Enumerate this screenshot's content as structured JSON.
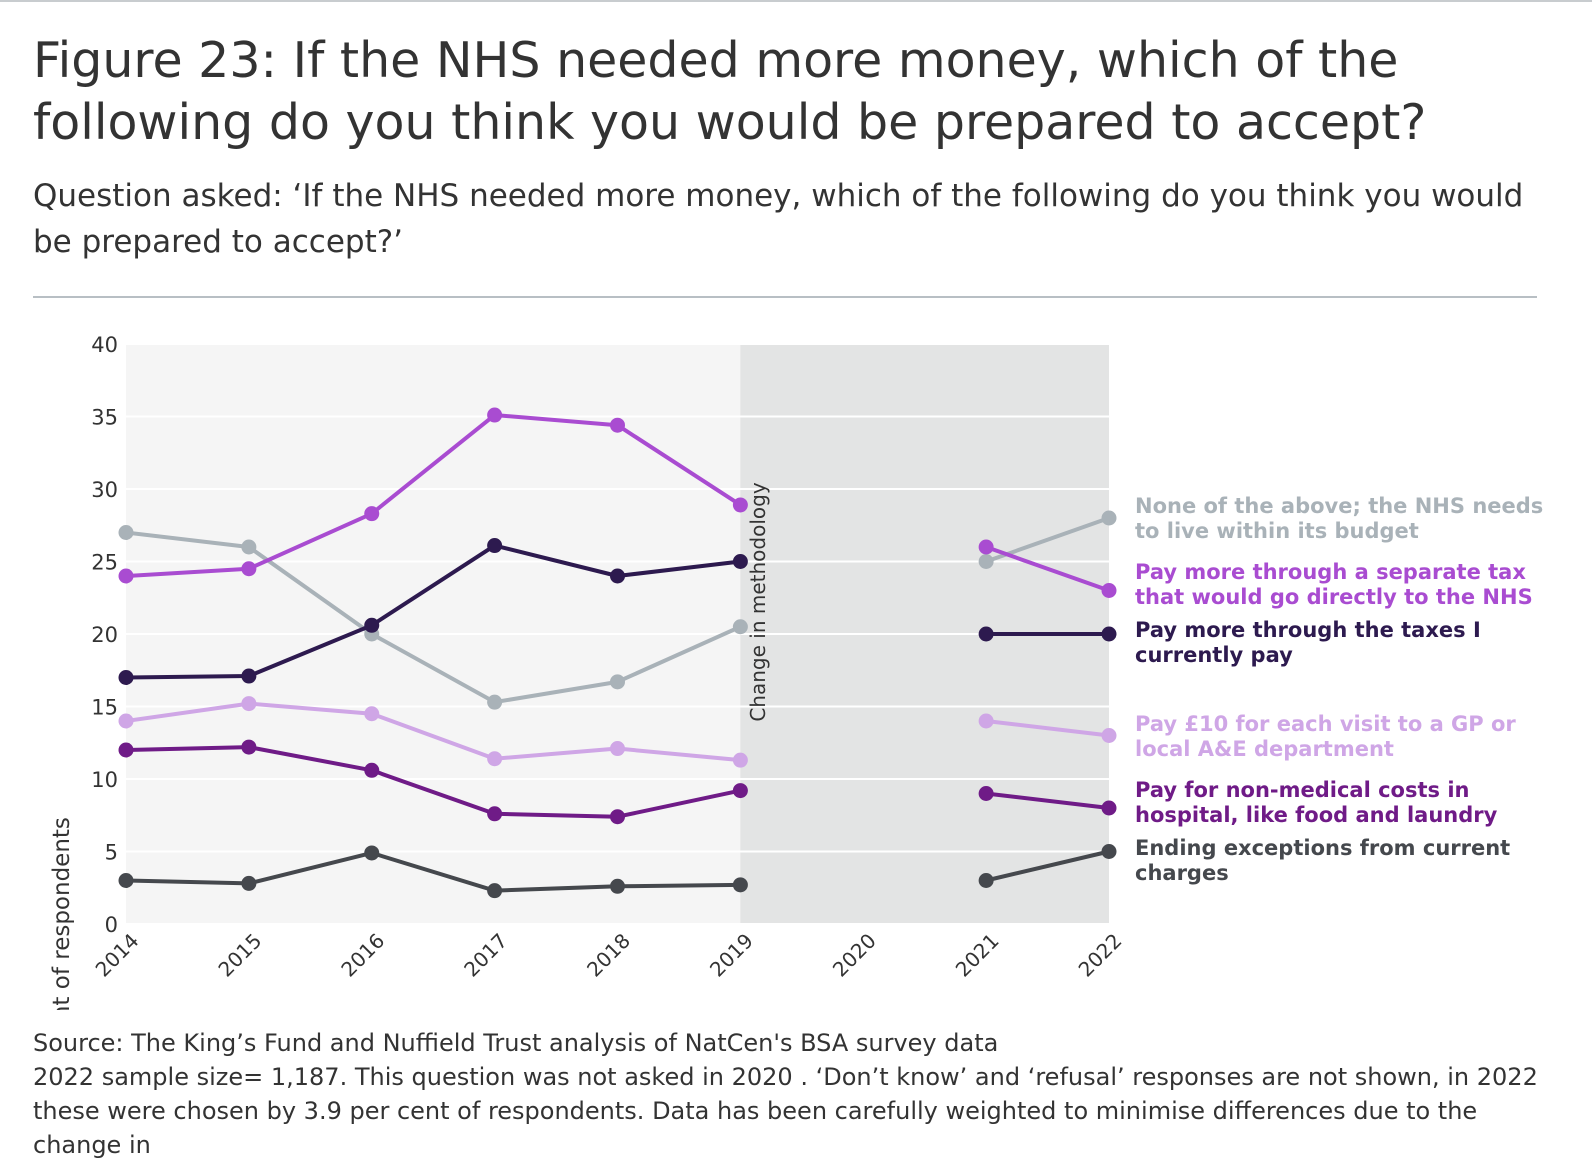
{
  "title": "Figure 23: If the NHS needed more money, which of the following do you think you would be prepared to accept?",
  "subtitle": "Question asked: ‘If the NHS needed more money, which of the following do you think you would be prepared to accept?’",
  "source_line": "Source: The King’s Fund and Nuffield Trust analysis of NatCen's BSA survey data",
  "notes_line": "2022 sample size= 1,187. This question was not asked in 2020 . ‘Don’t know’ and ‘refusal’ responses are not shown, in 2022 these were chosen by 3.9 per cent of respondents. Data has been carefully weighted to minimise differences due to the change in",
  "chart_data": {
    "type": "line",
    "x": [
      "2014",
      "2015",
      "2016",
      "2017",
      "2018",
      "2019",
      "2020",
      "2021",
      "2022"
    ],
    "ylabel": "Per cent of respondents",
    "ylim": [
      0,
      40
    ],
    "yticks": [
      0,
      5,
      10,
      15,
      20,
      25,
      30,
      35,
      40
    ],
    "grid": true,
    "shaded_region": {
      "from": "2019",
      "to": "2022",
      "label": "Change in methodology"
    },
    "series": [
      {
        "name": "None of the above; the NHS needs to live within its budget",
        "color": "#a9b2b8",
        "values": [
          27,
          26,
          20,
          15.3,
          16.7,
          20.5,
          null,
          25,
          28
        ]
      },
      {
        "name": "Pay more through a separate tax that would go directly to the NHS",
        "color": "#a94cd1",
        "values": [
          24,
          24.5,
          28.3,
          35.1,
          34.4,
          28.9,
          null,
          26,
          23
        ]
      },
      {
        "name": "Pay more through the taxes I currently pay",
        "color": "#2d1a4f",
        "values": [
          17,
          17.1,
          20.6,
          26.1,
          24,
          25,
          null,
          20,
          20
        ]
      },
      {
        "name": "Pay £10 for each visit to a GP or local A&E department",
        "color": "#cfa6e6",
        "values": [
          14,
          15.2,
          14.5,
          11.4,
          12.1,
          11.3,
          null,
          14,
          13
        ]
      },
      {
        "name": "Pay for non-medical costs in hospital, like food and laundry",
        "color": "#6f1b87",
        "values": [
          12,
          12.2,
          10.6,
          7.6,
          7.4,
          9.2,
          null,
          9,
          8
        ]
      },
      {
        "name": "Ending exceptions from current charges",
        "color": "#45484d",
        "values": [
          3,
          2.8,
          4.9,
          2.3,
          2.6,
          2.7,
          null,
          3,
          5
        ]
      }
    ]
  }
}
